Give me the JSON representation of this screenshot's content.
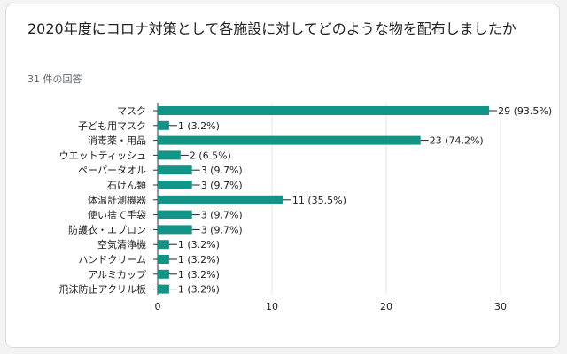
{
  "header": {
    "title": "2020年度にコロナ対策として各施設に対してどのような物を配布しましたか",
    "response_count": "31 件の回答"
  },
  "colors": {
    "bar": "#129486",
    "grid": "#e6e6e6",
    "axis": "#333333",
    "text": "#202124"
  },
  "chart_data": {
    "type": "bar",
    "orientation": "horizontal",
    "categories": [
      "マスク",
      "子ども用マスク",
      "消毒薬・用品",
      "ウエットティッシュ",
      "ペーパータオル",
      "石けん類",
      "体温計測機器",
      "使い捨て手袋",
      "防護衣・エプロン",
      "空気清浄機",
      "ハンドクリーム",
      "アルミカップ",
      "飛沫防止アクリル板"
    ],
    "values": [
      29,
      1,
      23,
      2,
      3,
      3,
      11,
      3,
      3,
      1,
      1,
      1,
      1
    ],
    "value_labels": [
      "29 (93.5%)",
      "1 (3.2%)",
      "23 (74.2%)",
      "2 (6.5%)",
      "3 (9.7%)",
      "3 (9.7%)",
      "11 (35.5%)",
      "3 (9.7%)",
      "3 (9.7%)",
      "1 (3.2%)",
      "1 (3.2%)",
      "1 (3.2%)",
      "1 (3.2%)"
    ],
    "xlim": [
      0,
      30
    ],
    "xticks": [
      0,
      10,
      20,
      30
    ],
    "grid": true
  }
}
